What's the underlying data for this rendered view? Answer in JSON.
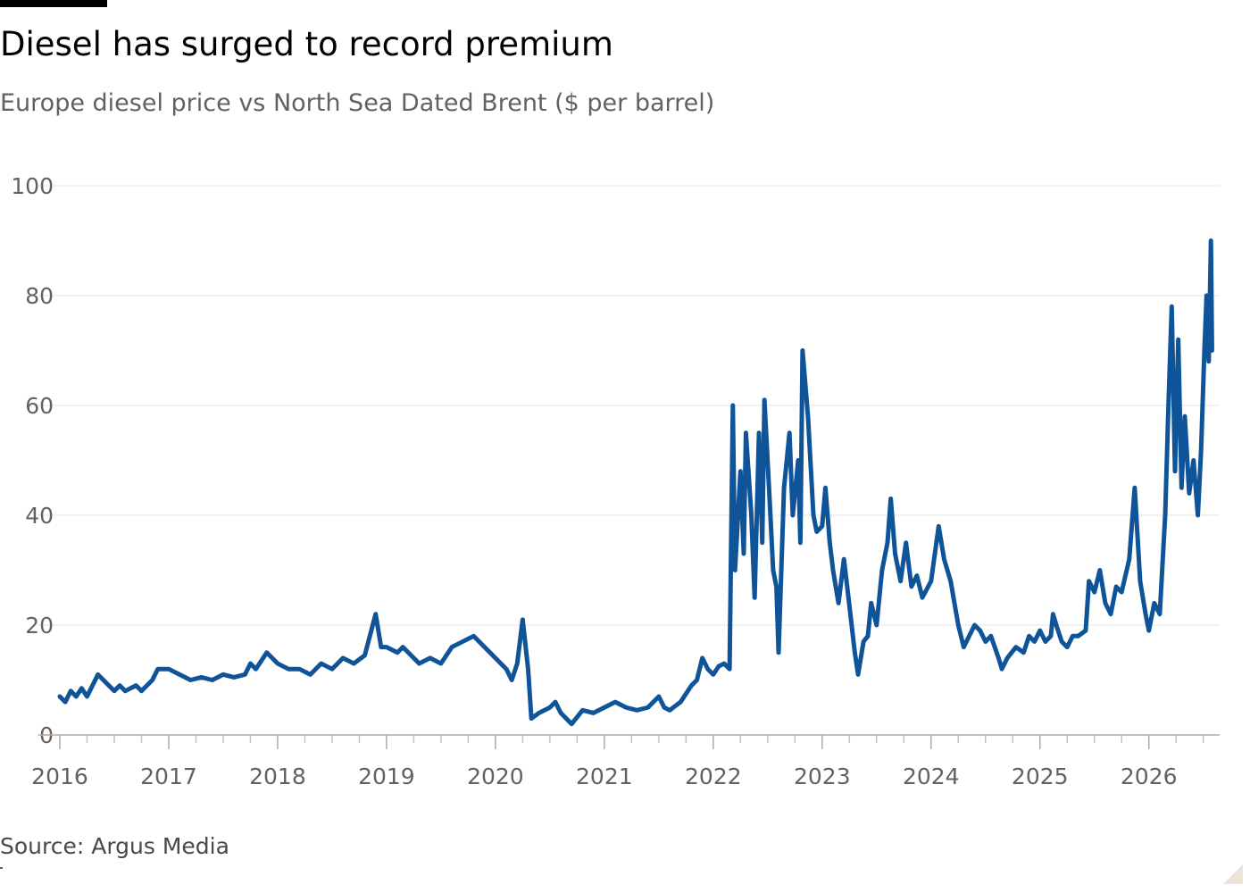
{
  "chart_data": {
    "type": "line",
    "title": "Diesel has surged to record premium",
    "subtitle": "Europe diesel price vs North Sea Dated Brent ($ per barrel)",
    "source": "Source: Argus Media",
    "color": "#0f5499",
    "xlim": [
      2015.8,
      2026.65
    ],
    "xticks": [
      2016,
      2017,
      2018,
      2019,
      2020,
      2021,
      2022,
      2023,
      2024,
      2025,
      2026
    ],
    "ylim": [
      0,
      100
    ],
    "yticks": [
      0,
      20,
      40,
      60,
      80,
      100
    ],
    "grid": true,
    "x": [
      2016.0,
      2016.05,
      2016.1,
      2016.15,
      2016.2,
      2016.25,
      2016.3,
      2016.35,
      2016.4,
      2016.45,
      2016.5,
      2016.55,
      2016.6,
      2016.7,
      2016.75,
      2016.85,
      2016.9,
      2017.0,
      2017.1,
      2017.2,
      2017.3,
      2017.4,
      2017.5,
      2017.6,
      2017.7,
      2017.75,
      2017.8,
      2017.9,
      2018.0,
      2018.1,
      2018.2,
      2018.3,
      2018.4,
      2018.5,
      2018.6,
      2018.7,
      2018.8,
      2018.9,
      2018.95,
      2019.0,
      2019.1,
      2019.15,
      2019.3,
      2019.4,
      2019.5,
      2019.6,
      2019.7,
      2019.8,
      2019.9,
      2020.0,
      2020.1,
      2020.15,
      2020.2,
      2020.25,
      2020.3,
      2020.33,
      2020.4,
      2020.5,
      2020.55,
      2020.6,
      2020.7,
      2020.8,
      2020.9,
      2021.0,
      2021.1,
      2021.2,
      2021.3,
      2021.4,
      2021.5,
      2021.55,
      2021.6,
      2021.7,
      2021.8,
      2021.85,
      2021.9,
      2021.95,
      2022.0,
      2022.05,
      2022.1,
      2022.15,
      2022.18,
      2022.2,
      2022.25,
      2022.28,
      2022.3,
      2022.35,
      2022.38,
      2022.42,
      2022.45,
      2022.47,
      2022.52,
      2022.55,
      2022.58,
      2022.6,
      2022.65,
      2022.7,
      2022.73,
      2022.78,
      2022.8,
      2022.82,
      2022.87,
      2022.92,
      2022.95,
      2023.0,
      2023.03,
      2023.07,
      2023.1,
      2023.15,
      2023.2,
      2023.23,
      2023.3,
      2023.33,
      2023.38,
      2023.42,
      2023.45,
      2023.5,
      2023.55,
      2023.6,
      2023.63,
      2023.67,
      2023.72,
      2023.77,
      2023.82,
      2023.87,
      2023.92,
      2024.0,
      2024.07,
      2024.12,
      2024.18,
      2024.25,
      2024.3,
      2024.35,
      2024.4,
      2024.45,
      2024.5,
      2024.55,
      2024.62,
      2024.65,
      2024.7,
      2024.78,
      2024.85,
      2024.9,
      2024.95,
      2025.0,
      2025.05,
      2025.1,
      2025.12,
      2025.15,
      2025.2,
      2025.25,
      2025.3,
      2025.35,
      2025.42,
      2025.45,
      2025.5,
      2025.55,
      2025.6,
      2025.65,
      2025.7,
      2025.75,
      2025.82,
      2025.87,
      2025.92,
      2025.97,
      2026.0,
      2026.05,
      2026.1,
      2026.15,
      2026.18,
      2026.21,
      2026.24,
      2026.27,
      2026.3,
      2026.33,
      2026.37,
      2026.41,
      2026.45,
      2026.48,
      2026.51,
      2026.53,
      2026.55,
      2026.57,
      2026.58
    ],
    "values": [
      7,
      6,
      8,
      7,
      8.5,
      7,
      9,
      11,
      10,
      9,
      8,
      9,
      8,
      9,
      8,
      10,
      12,
      12,
      11,
      10,
      10.5,
      10,
      11,
      10.5,
      11,
      13,
      12,
      15,
      13,
      12,
      12,
      11,
      13,
      12,
      14,
      13,
      14.5,
      22,
      16,
      16,
      15,
      16,
      13,
      14,
      13,
      16,
      17,
      18,
      16,
      14,
      12,
      10,
      13,
      21,
      12,
      3,
      4,
      5,
      6,
      4,
      2,
      4.5,
      4,
      5,
      6,
      5,
      4.5,
      5,
      7,
      5,
      4.5,
      6,
      9,
      10,
      14,
      12,
      11,
      12.5,
      13,
      12,
      60,
      30,
      48,
      33,
      55,
      40,
      25,
      55,
      35,
      61,
      42,
      30,
      27,
      15,
      45,
      55,
      40,
      50,
      35,
      70,
      58,
      40,
      37,
      38,
      45,
      35,
      30,
      24,
      32,
      27,
      15,
      11,
      17,
      18,
      24,
      20,
      30,
      35,
      43,
      33,
      28,
      35,
      27,
      29,
      25,
      28,
      38,
      32,
      28,
      20,
      16,
      18,
      20,
      19,
      17,
      18,
      14,
      12,
      14,
      16,
      15,
      18,
      17,
      19,
      17,
      18,
      22,
      20,
      17,
      16,
      18,
      18,
      19,
      28,
      26,
      30,
      24,
      22,
      27,
      26,
      32,
      45,
      28,
      22,
      19,
      24,
      22,
      40,
      60,
      78,
      48,
      72,
      45,
      58,
      44,
      50,
      40,
      52,
      70,
      80,
      68,
      90,
      70
    ]
  }
}
